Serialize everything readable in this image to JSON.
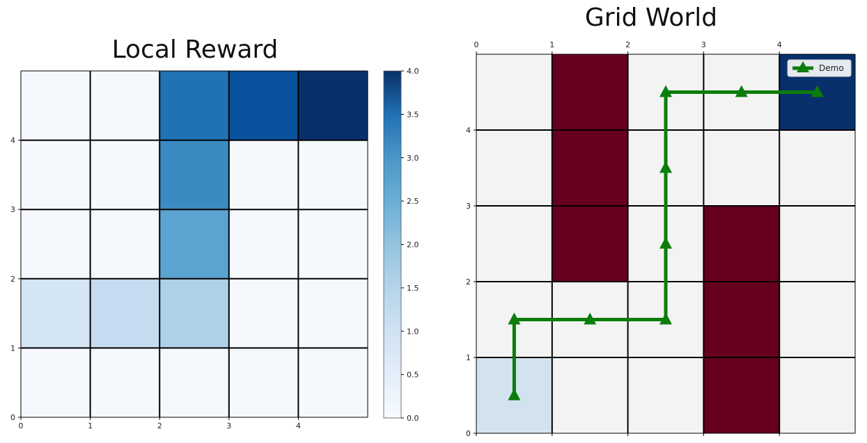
{
  "chart_data": [
    {
      "type": "heatmap",
      "title": "Local Reward",
      "xlim": [
        0,
        5
      ],
      "ylim": [
        0,
        5
      ],
      "x_ticks": [
        "0",
        "1",
        "2",
        "3",
        "4"
      ],
      "y_ticks": [
        "0",
        "1",
        "2",
        "3",
        "4"
      ],
      "grid": true,
      "colormap": "Blues",
      "colorbar": {
        "vmin": 0,
        "vmax": 4,
        "ticks": [
          "0.0",
          "0.5",
          "1.0",
          "1.5",
          "2.0",
          "2.5",
          "3.0",
          "3.5",
          "4.0"
        ]
      },
      "rows_top_to_bottom": [
        [
          0.05,
          0.05,
          3.0,
          3.5,
          4.0
        ],
        [
          0.05,
          0.05,
          2.6,
          0.05,
          0.05
        ],
        [
          0.05,
          0.05,
          2.2,
          0.05,
          0.05
        ],
        [
          0.7,
          1.0,
          1.3,
          0.05,
          0.05
        ],
        [
          0.05,
          0.05,
          0.05,
          0.05,
          0.05
        ]
      ]
    },
    {
      "type": "line",
      "title": "Grid World",
      "xlim": [
        0,
        5
      ],
      "ylim": [
        0,
        5
      ],
      "x_ticks": [
        "0",
        "1",
        "2",
        "3",
        "4"
      ],
      "y_ticks": [
        "0",
        "1",
        "2",
        "3",
        "4"
      ],
      "grid": true,
      "cells": {
        "obstacles": [
          [
            1,
            2
          ],
          [
            1,
            3
          ],
          [
            1,
            4
          ],
          [
            3,
            0
          ],
          [
            3,
            1
          ],
          [
            3,
            2
          ]
        ],
        "start": [
          0,
          0
        ],
        "goal": [
          4,
          4
        ]
      },
      "colors": {
        "empty": "#f3f3f3",
        "obstacle": "#67001f",
        "start": "#d2e3ef",
        "goal": "#08306b",
        "path": "#0a7d0a"
      },
      "legend": {
        "placement": "top-right",
        "entries": [
          "Demo"
        ]
      },
      "series": [
        {
          "name": "Demo",
          "x": [
            0.5,
            0.5,
            1.5,
            2.5,
            2.5,
            2.5,
            2.5,
            3.5,
            4.5
          ],
          "y": [
            0.5,
            1.5,
            1.5,
            1.5,
            2.5,
            3.5,
            4.5,
            4.5,
            4.5
          ]
        }
      ]
    }
  ]
}
